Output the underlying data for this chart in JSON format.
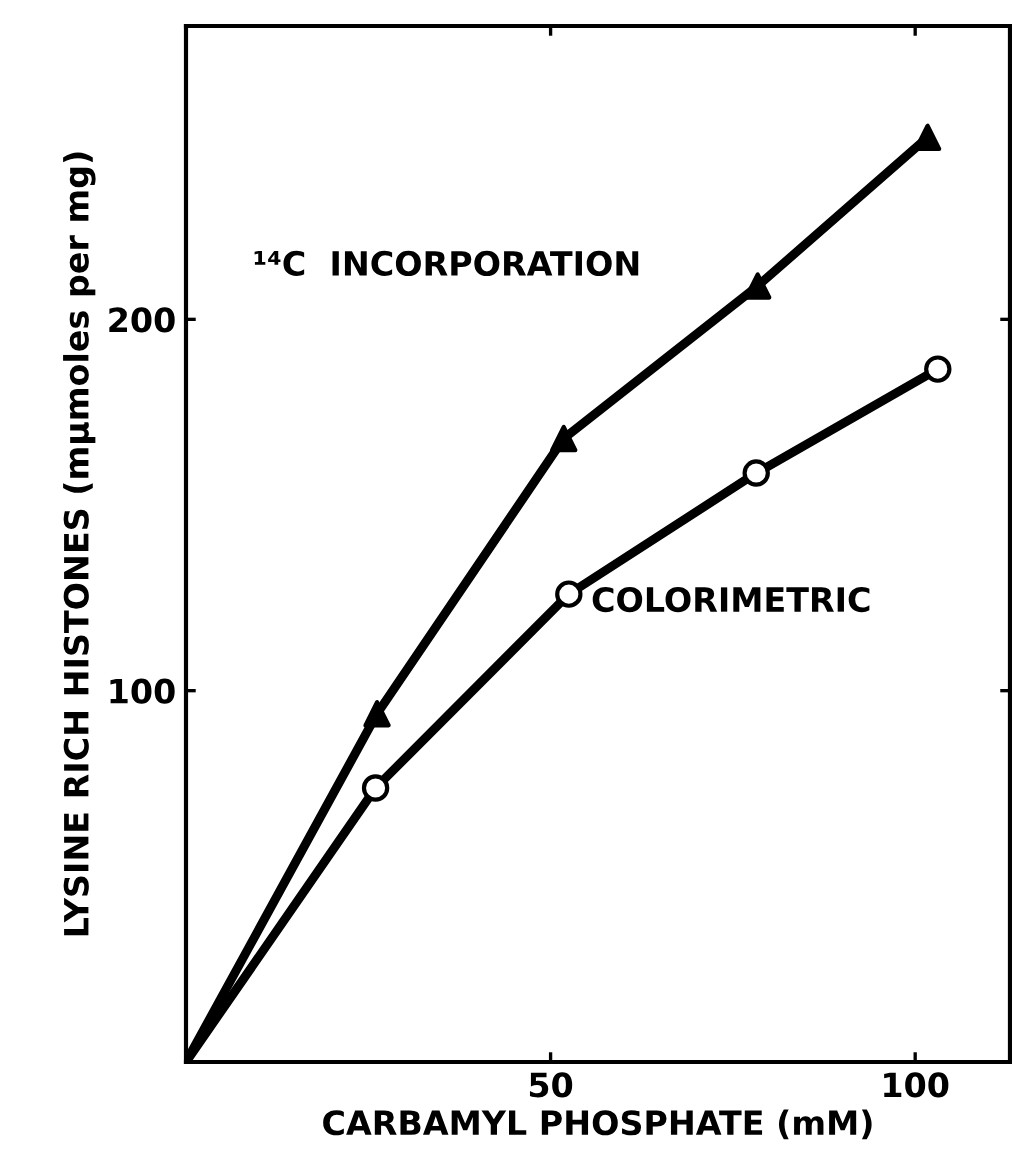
{
  "chart_data": {
    "type": "line",
    "xlabel": "CARBAMYL PHOSPHATE (mM)",
    "ylabel": "LYSINE RICH HISTONES (mμmoles per mg)",
    "series": [
      {
        "name": "¹⁴C  INCORPORATION",
        "color": "#000000",
        "marker": "none",
        "x": [
          0,
          26.2,
          51.8,
          78.4,
          101.7
        ],
        "values": [
          0,
          93.8,
          167.9,
          209,
          249
        ]
      },
      {
        "name": "COLORIMETRIC",
        "color": "#000000",
        "marker": "none",
        "x": [
          0,
          26.0,
          52.5,
          78.2,
          103.1
        ],
        "values": [
          0,
          73.8,
          126,
          158.6,
          186.6
        ]
      },
      {
        "type": "scatter",
        "color": "#000000",
        "marker": "triangle",
        "x": [
          26.2,
          51.8,
          78.4,
          101.7
        ],
        "values": [
          93.8,
          167.9,
          209,
          249
        ]
      },
      {
        "type": "scatter",
        "color": "#ffffff",
        "marker": "circle",
        "x": [
          26.0,
          52.5,
          78.2,
          103.1
        ],
        "values": [
          73.8,
          126,
          158.6,
          186.6
        ]
      }
    ],
    "xlim": [
      0,
      113
    ],
    "ylim": [
      0,
      279
    ],
    "xticks": [
      50,
      100
    ],
    "yticks": [
      100,
      200
    ],
    "grid": false,
    "legend": false
  }
}
